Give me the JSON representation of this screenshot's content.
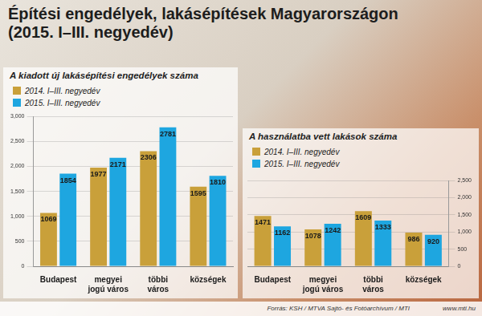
{
  "header": {
    "title": "Építési engedélyek, lakásépítések Magyarországon",
    "subtitle": "(2015. I–III. negyedév)"
  },
  "footer": {
    "source": "Forrás: KSH / MTVA Sajtó- és Fotóarchívum / MTI",
    "website": "www.mti.hu"
  },
  "chart_data": [
    {
      "type": "bar",
      "title": "A kiadott új lakásépítési engedélyek száma",
      "categories": [
        "Budapest",
        [
          "megyei",
          "jogú város"
        ],
        [
          "többi",
          "város"
        ],
        "községek"
      ],
      "series": [
        {
          "name": "2014. I–III. negyedév",
          "color": "#c9a03a",
          "values": [
            1069,
            1977,
            2306,
            1595
          ]
        },
        {
          "name": "2015. I–III. negyedév",
          "color": "#1ea6e0",
          "values": [
            1854,
            2171,
            2781,
            1810
          ]
        }
      ],
      "ylim": [
        0,
        3000
      ],
      "yticks": [
        0,
        500,
        1000,
        1500,
        2000,
        2500,
        3000
      ],
      "grid": true,
      "data_labels": true,
      "legend": "top-left"
    },
    {
      "type": "bar",
      "title": "A használatba vett lakások száma",
      "categories": [
        "Budapest",
        [
          "megyei",
          "jogú város"
        ],
        [
          "többi",
          "város"
        ],
        "községek"
      ],
      "series": [
        {
          "name": "2014. I–III. negyedév",
          "color": "#c9a03a",
          "values": [
            1471,
            1078,
            1609,
            986
          ]
        },
        {
          "name": "2015. I–III. negyedév",
          "color": "#1ea6e0",
          "values": [
            1162,
            1242,
            1333,
            920
          ]
        }
      ],
      "ylim": [
        0,
        2500
      ],
      "yticks": [
        0,
        500,
        1000,
        1500,
        2000,
        2500
      ],
      "grid": true,
      "data_labels": true,
      "legend": "top-left"
    }
  ]
}
